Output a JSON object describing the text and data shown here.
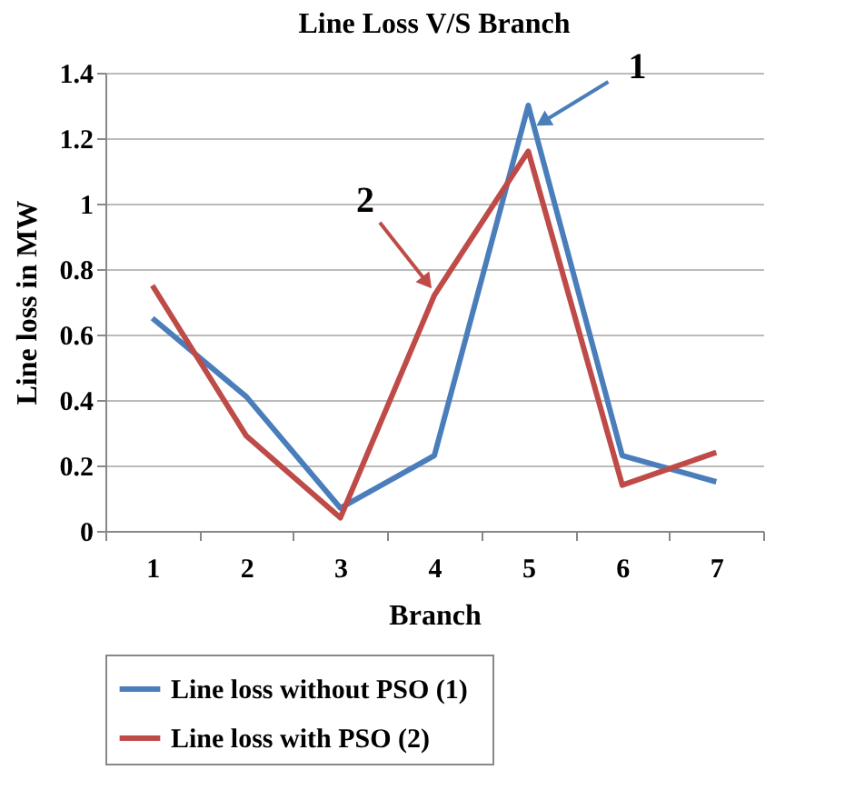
{
  "chart_data": {
    "type": "line",
    "title": "Line Loss V/S Branch",
    "xlabel": "Branch",
    "ylabel": "Line loss in MW",
    "categories": [
      "1",
      "2",
      "3",
      "4",
      "5",
      "6",
      "7"
    ],
    "series": [
      {
        "name": "Line loss without   PSO (1)",
        "color": "#4a7ebb",
        "values": [
          0.65,
          0.41,
          0.07,
          0.23,
          1.3,
          0.23,
          0.15
        ]
      },
      {
        "name": "Line loss with PSO (2)",
        "color": "#be4b48",
        "values": [
          0.75,
          0.29,
          0.04,
          0.72,
          1.16,
          0.14,
          0.24
        ]
      }
    ],
    "annotations": [
      {
        "text": "1",
        "x": "5",
        "y": 1.3
      },
      {
        "text": "2",
        "x": "4",
        "y": 0.72
      }
    ],
    "ylim": [
      0,
      1.4
    ],
    "yticks": [
      0,
      0.2,
      0.4,
      0.6,
      0.8,
      1,
      1.2,
      1.4
    ],
    "grid": "y",
    "legend": "bottom",
    "marker": "none",
    "line_style": "solid"
  }
}
